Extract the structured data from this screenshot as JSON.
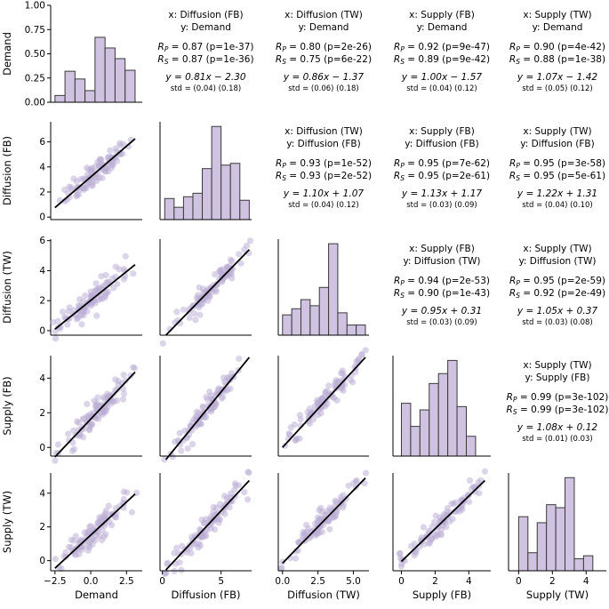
{
  "chart_data": {
    "type": "pairplot",
    "variables": [
      "Demand",
      "Diffusion (FB)",
      "Diffusion (TW)",
      "Supply (FB)",
      "Supply (TW)"
    ],
    "axes": {
      "Demand": {
        "lim": [
          -2.8,
          3.6
        ],
        "ticks": [
          -2.5,
          0.0,
          2.5
        ],
        "tick_labels": [
          "−2.5",
          "0.0",
          "2.5"
        ]
      },
      "Diffusion (FB)": {
        "lim": [
          -0.2,
          7.6
        ],
        "ticks": [
          0,
          2,
          4,
          6
        ],
        "tick_labels": [
          "0",
          "2",
          "4",
          "6"
        ]
      },
      "Diffusion (TW)": {
        "lim": [
          -0.3,
          6.1
        ],
        "ticks": [
          0,
          2,
          4,
          6
        ],
        "tick_labels": [
          "0",
          "2",
          "4",
          "6"
        ]
      },
      "Supply (FB)": {
        "lim": [
          -0.5,
          5.3
        ],
        "ticks": [
          0,
          2,
          4
        ],
        "tick_labels": [
          "0",
          "2",
          "4"
        ]
      },
      "Supply (TW)": {
        "lim": [
          -0.6,
          5.2
        ],
        "ticks": [
          0,
          2,
          4
        ],
        "tick_labels": [
          "0",
          "2",
          "4"
        ]
      }
    },
    "bottom_ticks": {
      "Demand": [
        "−2.5",
        "0.0",
        "2.5"
      ],
      "Diffusion (FB)": [
        "0",
        "5"
      ],
      "Diffusion (TW)": [
        "0.0",
        "2.5",
        "5.0"
      ],
      "Supply (FB)": [
        "0",
        "2",
        "4"
      ],
      "Supply (TW)": [
        "0",
        "2",
        "4"
      ]
    },
    "bottom_tick_values": {
      "Demand": [
        -2.5,
        0.0,
        2.5
      ],
      "Diffusion (FB)": [
        0,
        5
      ],
      "Diffusion (TW)": [
        0.0,
        2.5,
        5.0
      ],
      "Supply (FB)": [
        0,
        2,
        4
      ],
      "Supply (TW)": [
        0,
        2,
        4
      ]
    },
    "demand_hist_axis": {
      "lim": [
        0,
        1.0
      ],
      "ticks": [
        0.0,
        0.25,
        0.5,
        0.75,
        1.0
      ],
      "tick_labels": [
        "0.00",
        "0.25",
        "0.50",
        "0.75",
        "1.00"
      ]
    },
    "histograms": [
      {
        "variable": "Demand",
        "edges": [
          -2.5,
          -1.8,
          -1.1,
          -0.4,
          0.3,
          1.0,
          1.7,
          2.4,
          3.1
        ],
        "heights": [
          0.07,
          0.32,
          0.24,
          0.12,
          0.67,
          0.56,
          0.45,
          0.33
        ]
      },
      {
        "variable": "Diffusion (FB)",
        "edges": [
          0.2,
          1.0,
          1.8,
          2.6,
          3.4,
          4.2,
          5.0,
          5.8,
          6.6,
          7.4
        ],
        "heights": [
          1.2,
          0.7,
          1.3,
          1.5,
          2.9,
          5.3,
          3.1,
          3.2,
          1.1,
          0.5
        ]
      },
      {
        "variable": "Diffusion (TW)",
        "edges": [
          0.0,
          0.65,
          1.3,
          1.95,
          2.6,
          3.25,
          3.9,
          4.55,
          5.2,
          5.85
        ],
        "heights": [
          2.0,
          2.6,
          3.5,
          2.9,
          4.7,
          9.0,
          2.2,
          1.0,
          1.0
        ]
      },
      {
        "variable": "Supply (FB)",
        "edges": [
          0.0,
          0.55,
          1.1,
          1.65,
          2.2,
          2.75,
          3.3,
          3.85,
          4.4,
          4.95
        ],
        "heights": [
          1.6,
          0.9,
          1.4,
          2.2,
          2.5,
          2.9,
          1.5,
          0.6,
          0.0
        ]
      },
      {
        "variable": "Supply (TW)",
        "edges": [
          0.0,
          0.55,
          1.1,
          1.65,
          2.2,
          2.75,
          3.3,
          3.85,
          4.4,
          4.95
        ],
        "heights": [
          1.8,
          0.6,
          1.6,
          2.2,
          2.1,
          3.1,
          0.4,
          0.5,
          0.0
        ]
      }
    ],
    "regressions": [
      {
        "x": "Diffusion (FB)",
        "y": "Demand",
        "rp": "0.87",
        "rp_p": "1e-37",
        "rs": "0.87",
        "rs_p": "1e-36",
        "slope": 0.81,
        "intercept": -2.3,
        "eq": "y = 0.81x − 2.30",
        "std": "std = (0.04)  (0.18)"
      },
      {
        "x": "Diffusion (TW)",
        "y": "Demand",
        "rp": "0.80",
        "rp_p": "2e-26",
        "rs": "0.75",
        "rs_p": "6e-22",
        "slope": 0.86,
        "intercept": -1.37,
        "eq": "y = 0.86x − 1.37",
        "std": "std = (0.06)  (0.18)"
      },
      {
        "x": "Supply (FB)",
        "y": "Demand",
        "rp": "0.92",
        "rp_p": "9e-47",
        "rs": "0.89",
        "rs_p": "9e-42",
        "slope": 1.0,
        "intercept": -1.57,
        "eq": "y = 1.00x − 1.57",
        "std": "std = (0.04)  (0.12)"
      },
      {
        "x": "Supply (TW)",
        "y": "Demand",
        "rp": "0.90",
        "rp_p": "4e-42",
        "rs": "0.88",
        "rs_p": "1e-38",
        "slope": 1.07,
        "intercept": -1.42,
        "eq": "y = 1.07x − 1.42",
        "std": "std = (0.05)  (0.12)"
      },
      {
        "x": "Diffusion (TW)",
        "y": "Diffusion (FB)",
        "rp": "0.93",
        "rp_p": "1e-52",
        "rs": "0.93",
        "rs_p": "2e-52",
        "slope": 1.1,
        "intercept": 1.07,
        "eq": "y = 1.10x + 1.07",
        "std": "std = (0.04)  (0.12)"
      },
      {
        "x": "Supply (FB)",
        "y": "Diffusion (FB)",
        "rp": "0.95",
        "rp_p": "7e-62",
        "rs": "0.95",
        "rs_p": "2e-61",
        "slope": 1.13,
        "intercept": 1.17,
        "eq": "y = 1.13x + 1.17",
        "std": "std = (0.03)  (0.09)"
      },
      {
        "x": "Supply (TW)",
        "y": "Diffusion (FB)",
        "rp": "0.95",
        "rp_p": "3e-58",
        "rs": "0.95",
        "rs_p": "5e-61",
        "slope": 1.22,
        "intercept": 1.31,
        "eq": "y = 1.22x + 1.31",
        "std": "std = (0.04)  (0.10)"
      },
      {
        "x": "Supply (FB)",
        "y": "Diffusion (TW)",
        "rp": "0.94",
        "rp_p": "2e-53",
        "rs": "0.90",
        "rs_p": "1e-43",
        "slope": 0.95,
        "intercept": 0.31,
        "eq": "y = 0.95x + 0.31",
        "std": "std = (0.03)  (0.09)"
      },
      {
        "x": "Supply (TW)",
        "y": "Diffusion (TW)",
        "rp": "0.95",
        "rp_p": "2e-59",
        "rs": "0.92",
        "rs_p": "2e-49",
        "slope": 1.05,
        "intercept": 0.37,
        "eq": "y = 1.05x + 0.37",
        "std": "std = (0.03)  (0.08)"
      },
      {
        "x": "Supply (TW)",
        "y": "Supply (FB)",
        "rp": "0.99",
        "rp_p": "3e-102",
        "rs": "0.99",
        "rs_p": "3e-102",
        "slope": 1.08,
        "intercept": 0.12,
        "eq": "y = 1.08x + 0.12",
        "std": "std = (0.01)  (0.03)"
      }
    ],
    "scatter_fits": [
      {
        "x": "Demand",
        "y": "Diffusion (FB)",
        "x0": -2.5,
        "y0": 0.75,
        "x1": 3.1,
        "y1": 6.25
      },
      {
        "x": "Demand",
        "y": "Diffusion (TW)",
        "x0": -2.5,
        "y0": 0.1,
        "x1": 3.1,
        "y1": 4.4
      },
      {
        "x": "Diffusion (FB)",
        "y": "Diffusion (TW)",
        "x0": 0.3,
        "y0": -0.3,
        "x1": 7.4,
        "y1": 5.4
      },
      {
        "x": "Demand",
        "y": "Supply (FB)",
        "x0": -2.5,
        "y0": -0.55,
        "x1": 3.1,
        "y1": 4.35
      },
      {
        "x": "Diffusion (FB)",
        "y": "Supply (FB)",
        "x0": 0.3,
        "y0": -0.7,
        "x1": 7.4,
        "y1": 5.2
      },
      {
        "x": "Diffusion (TW)",
        "y": "Supply (FB)",
        "x0": 0.0,
        "y0": 0.0,
        "x1": 5.85,
        "y1": 5.2
      },
      {
        "x": "Demand",
        "y": "Supply (TW)",
        "x0": -2.5,
        "y0": -0.45,
        "x1": 3.1,
        "y1": 3.95
      },
      {
        "x": "Diffusion (FB)",
        "y": "Supply (TW)",
        "x0": 0.3,
        "y0": -0.55,
        "x1": 7.4,
        "y1": 4.75
      },
      {
        "x": "Diffusion (TW)",
        "y": "Supply (TW)",
        "x0": 0.0,
        "y0": -0.15,
        "x1": 5.85,
        "y1": 4.9
      },
      {
        "x": "Supply (FB)",
        "y": "Supply (TW)",
        "x0": 0.0,
        "y0": -0.05,
        "x1": 4.95,
        "y1": 4.75
      }
    ],
    "labels": {
      "x_prefix": "x: ",
      "y_prefix": "y: ",
      "rp_label": "R",
      "rp_sub": "P",
      "rs_label": "R",
      "rs_sub": "S"
    },
    "colors": {
      "scatter": "#b9acd3",
      "bar_fill": "#cfc3e1",
      "bar_edge": "#3a3a3a",
      "line": "#000000"
    },
    "points_per_panel": 100
  }
}
